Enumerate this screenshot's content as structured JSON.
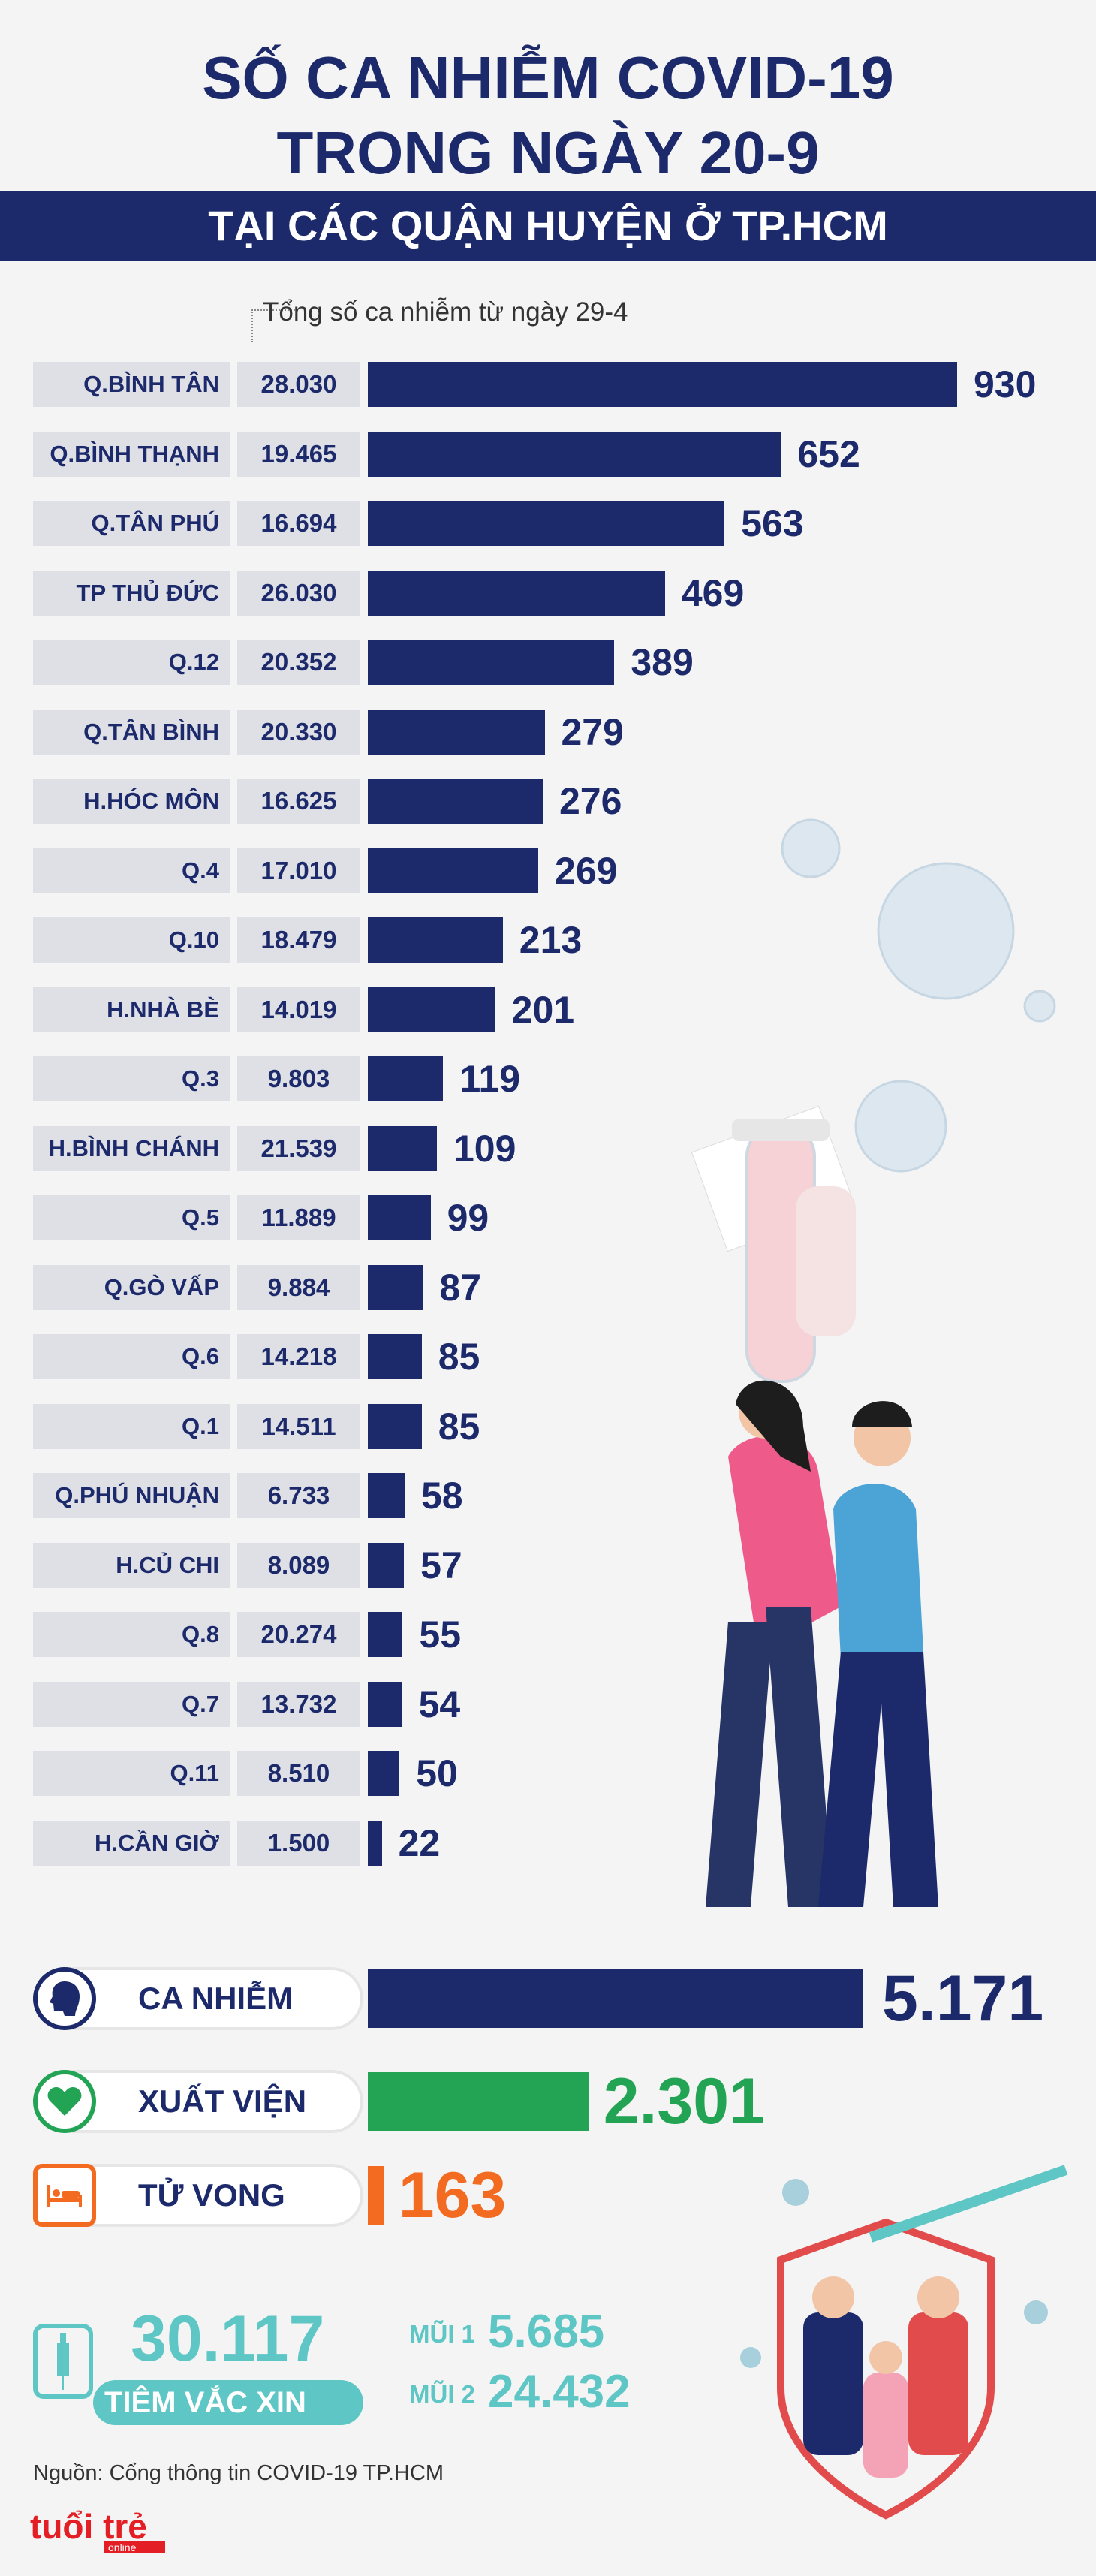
{
  "title_line1": "SỐ CA NHIỄM COVID-19",
  "title_line2": "TRONG NGÀY 20-9",
  "banner": "TẠI CÁC QUẬN HUYỆN Ở TP.HCM",
  "annotation": "Tổng số ca nhiễm từ ngày 29-4",
  "chart_data": {
    "type": "bar",
    "categories": [
      "Q.BÌNH TÂN",
      "Q.BÌNH THẠNH",
      "Q.TÂN PHÚ",
      "TP THỦ ĐỨC",
      "Q.12",
      "Q.TÂN BÌNH",
      "H.HÓC MÔN",
      "Q.4",
      "Q.10",
      "H.NHÀ BÈ",
      "Q.3",
      "H.BÌNH CHÁNH",
      "Q.5",
      "Q.GÒ VẤP",
      "Q.6",
      "Q.1",
      "Q.PHÚ NHUẬN",
      "H.CỦ CHI",
      "Q.8",
      "Q.7",
      "Q.11",
      "H.CẦN GIỜ"
    ],
    "totals_label": [
      "28.030",
      "19.465",
      "16.694",
      "26.030",
      "20.352",
      "20.330",
      "16.625",
      "17.010",
      "18.479",
      "14.019",
      "9.803",
      "21.539",
      "11.889",
      "9.884",
      "14.218",
      "14.511",
      "6.733",
      "8.089",
      "20.274",
      "13.732",
      "8.510",
      "1.500"
    ],
    "values": [
      930,
      652,
      563,
      469,
      389,
      279,
      276,
      269,
      213,
      201,
      119,
      109,
      99,
      87,
      85,
      85,
      58,
      57,
      55,
      54,
      50,
      22
    ],
    "orientation": "horizontal"
  },
  "summary": {
    "infected": {
      "label": "CA NHIỄM",
      "value": "5.171",
      "number": 5171,
      "color": "#1c2a6b",
      "icon": "head-icon"
    },
    "recovered": {
      "label": "XUẤT VIỆN",
      "value": "2.301",
      "number": 2301,
      "color": "#23a455",
      "icon": "heart-icon"
    },
    "deaths": {
      "label": "TỬ VONG",
      "value": "163",
      "number": 163,
      "color": "#f26b21",
      "icon": "bed-icon"
    }
  },
  "vaccine": {
    "total": "30.117",
    "label": "TIÊM VẮC XIN",
    "dose1_label": "MŨI 1",
    "dose1_value": "5.685",
    "dose2_label": "MŨI 2",
    "dose2_value": "24.432"
  },
  "source": "Nguồn: Cổng thông tin COVID-19 TP.HCM",
  "logo": "tuổi trẻ online"
}
